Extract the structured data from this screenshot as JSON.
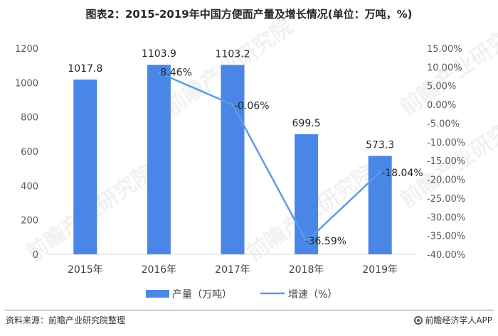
{
  "title": "图表2：2015-2019年中国方便面产量及增长情况(单位：万吨，%)",
  "source": "资料来源：前瞻产业研究院整理",
  "brand": "前瞻经济学人APP",
  "watermark": "前瞻产业研究院",
  "chart_data": {
    "type": "bar",
    "categories": [
      "2015年",
      "2016年",
      "2017年",
      "2018年",
      "2019年"
    ],
    "series": [
      {
        "name": "产量（万吨）",
        "type": "bar",
        "axis": "left",
        "values": [
          1017.8,
          1103.9,
          1103.2,
          699.5,
          573.3
        ],
        "labels": [
          "1017.8",
          "1103.9",
          "1103.2",
          "699.5",
          "573.3"
        ],
        "color": "#4a86e8"
      },
      {
        "name": "增速（%）",
        "type": "line",
        "axis": "right",
        "values": [
          null,
          8.46,
          -0.06,
          -36.59,
          -18.04
        ],
        "labels": [
          "",
          "8.46%",
          "-0.06%",
          "-36.59%",
          "-18.04%"
        ],
        "color": "#5b9be6"
      }
    ],
    "y_left": {
      "min": 0,
      "max": 1200,
      "ticks": [
        0,
        200,
        400,
        600,
        800,
        1000,
        1200
      ],
      "tick_labels": [
        "0",
        "200",
        "400",
        "600",
        "800",
        "1000",
        "1200"
      ]
    },
    "y_right": {
      "min": -40,
      "max": 15,
      "ticks": [
        15,
        10,
        5,
        0,
        -5,
        -10,
        -15,
        -20,
        -25,
        -30,
        -35,
        -40
      ],
      "tick_labels": [
        "15.00%",
        "10.00%",
        "5.00%",
        "0.00%",
        "-5.00%",
        "-10.00%",
        "-15.00%",
        "-20.00%",
        "-25.00%",
        "-30.00%",
        "-35.00%",
        "-40.00%"
      ]
    },
    "grid": false,
    "legend_position": "bottom"
  }
}
